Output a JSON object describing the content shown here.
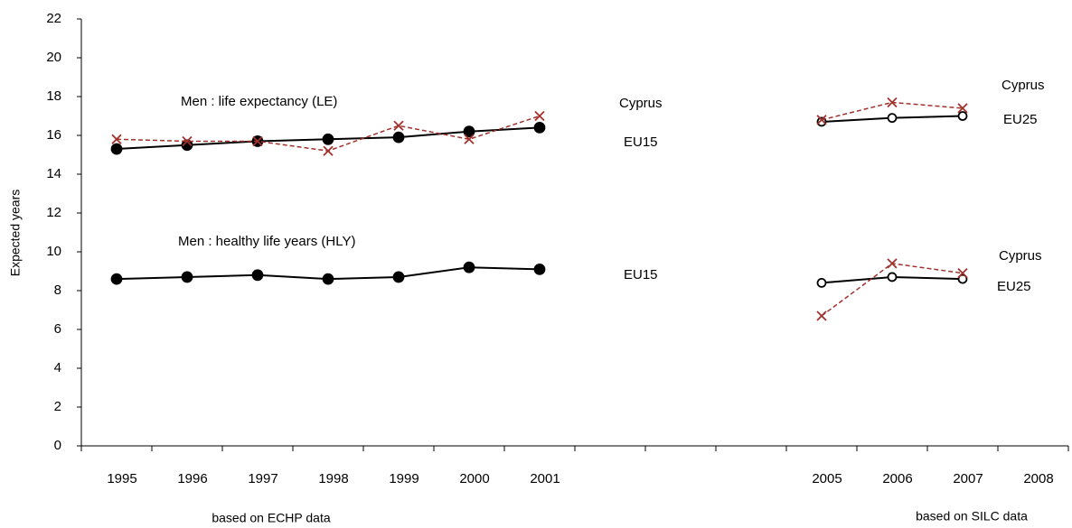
{
  "chart_data": {
    "type": "line",
    "y_label": "Expected years",
    "categories": [
      "1995",
      "1996",
      "1997",
      "1998",
      "1999",
      "2000",
      "2001",
      null,
      null,
      null,
      "2005",
      "2006",
      "2007",
      "2008"
    ],
    "ylim": [
      0,
      22
    ],
    "yticks": [
      0,
      2,
      4,
      6,
      8,
      10,
      12,
      14,
      16,
      18,
      20,
      22
    ],
    "series": [
      {
        "color": "#000000",
        "marker": "filled-circle",
        "dashed": false,
        "values": [
          15.3,
          15.5,
          15.7,
          15.8,
          15.9,
          16.2,
          16.4,
          null,
          null,
          null,
          null,
          null,
          null,
          null
        ]
      },
      {
        "color": "#000000",
        "marker": "open-circle",
        "dashed": false,
        "values": [
          null,
          null,
          null,
          null,
          null,
          null,
          null,
          null,
          null,
          null,
          16.7,
          16.9,
          17.0,
          null
        ]
      },
      {
        "color": "#a0322d",
        "marker": "x",
        "dashed": true,
        "values": [
          15.8,
          15.7,
          15.7,
          15.2,
          16.5,
          15.8,
          17.0,
          null,
          null,
          null,
          16.8,
          17.7,
          17.4,
          null
        ]
      },
      {
        "color": "#000000",
        "marker": "filled-circle",
        "dashed": false,
        "values": [
          8.6,
          8.7,
          8.8,
          8.6,
          8.7,
          9.2,
          9.1,
          null,
          null,
          null,
          null,
          null,
          null,
          null
        ]
      },
      {
        "color": "#000000",
        "marker": "open-circle",
        "dashed": false,
        "values": [
          null,
          null,
          null,
          null,
          null,
          null,
          null,
          null,
          null,
          null,
          8.4,
          8.7,
          8.6,
          null
        ]
      },
      {
        "color": "#a0322d",
        "marker": "x",
        "dashed": true,
        "values": [
          null,
          null,
          null,
          null,
          null,
          null,
          null,
          null,
          null,
          null,
          6.7,
          9.4,
          8.9,
          null
        ]
      }
    ],
    "annotations": [
      "Men : life expectancy (LE)",
      "Cyprus",
      "EU15",
      "Men : healthy life years (HLY)",
      "EU15",
      "Cyprus",
      "EU25",
      "Cyprus",
      "EU25",
      "based on ECHP data",
      "based on SILC data"
    ]
  }
}
